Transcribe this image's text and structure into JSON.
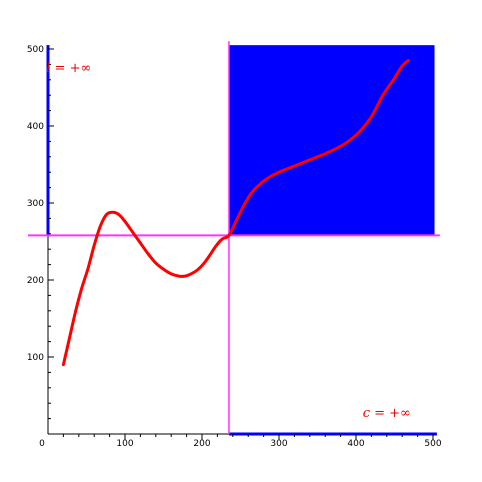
{
  "chart_data": {
    "type": "line",
    "title": "",
    "xlabel": "",
    "ylabel": "",
    "xlim": [
      0,
      505
    ],
    "ylim": [
      0,
      505
    ],
    "x_ticks": [
      {
        "value": 0,
        "label": "0"
      },
      {
        "value": 100,
        "label": "100"
      },
      {
        "value": 200,
        "label": "200"
      },
      {
        "value": 300,
        "label": "300"
      },
      {
        "value": 400,
        "label": "400"
      },
      {
        "value": 500,
        "label": "500"
      }
    ],
    "y_ticks": [
      {
        "value": 100,
        "label": "100"
      },
      {
        "value": 200,
        "label": "200"
      },
      {
        "value": 300,
        "label": "300"
      },
      {
        "value": 400,
        "label": "400"
      },
      {
        "value": 500,
        "label": "500"
      }
    ],
    "minor_tick_step": 20,
    "grid": false,
    "reference_lines": {
      "vertical_x": 235,
      "horizontal_y": 258,
      "color": "#ff33ff"
    },
    "shaded_region": {
      "x_range": [
        235,
        502
      ],
      "y_range": [
        258,
        505
      ],
      "color": "#0000ff"
    },
    "highlighted_axes": {
      "left_y_segment": [
        258,
        505
      ],
      "bottom_x_segment": [
        235,
        505
      ],
      "color": "#0000ff"
    },
    "series": [
      {
        "color": "#ff0000",
        "points": [
          [
            20,
            90
          ],
          [
            28,
            125
          ],
          [
            36,
            160
          ],
          [
            44,
            190
          ],
          [
            52,
            215
          ],
          [
            60,
            245
          ],
          [
            68,
            270
          ],
          [
            76,
            285
          ],
          [
            84,
            288
          ],
          [
            92,
            285
          ],
          [
            100,
            276
          ],
          [
            110,
            262
          ],
          [
            120,
            248
          ],
          [
            130,
            234
          ],
          [
            140,
            222
          ],
          [
            150,
            214
          ],
          [
            160,
            208
          ],
          [
            170,
            205
          ],
          [
            178,
            205
          ],
          [
            186,
            208
          ],
          [
            194,
            213
          ],
          [
            202,
            221
          ],
          [
            210,
            232
          ],
          [
            218,
            244
          ],
          [
            226,
            253
          ],
          [
            235,
            258
          ],
          [
            245,
            278
          ],
          [
            255,
            298
          ],
          [
            265,
            314
          ],
          [
            275,
            324
          ],
          [
            285,
            332
          ],
          [
            300,
            340
          ],
          [
            315,
            346
          ],
          [
            330,
            352
          ],
          [
            345,
            358
          ],
          [
            360,
            364
          ],
          [
            375,
            371
          ],
          [
            390,
            380
          ],
          [
            405,
            393
          ],
          [
            420,
            412
          ],
          [
            435,
            440
          ],
          [
            450,
            462
          ],
          [
            460,
            478
          ],
          [
            468,
            485
          ]
        ]
      }
    ],
    "annotations": [
      {
        "label": "l = +∞",
        "x": 27,
        "y": 470
      },
      {
        "label": "c = +∞",
        "x": 440,
        "y": 22
      }
    ]
  }
}
